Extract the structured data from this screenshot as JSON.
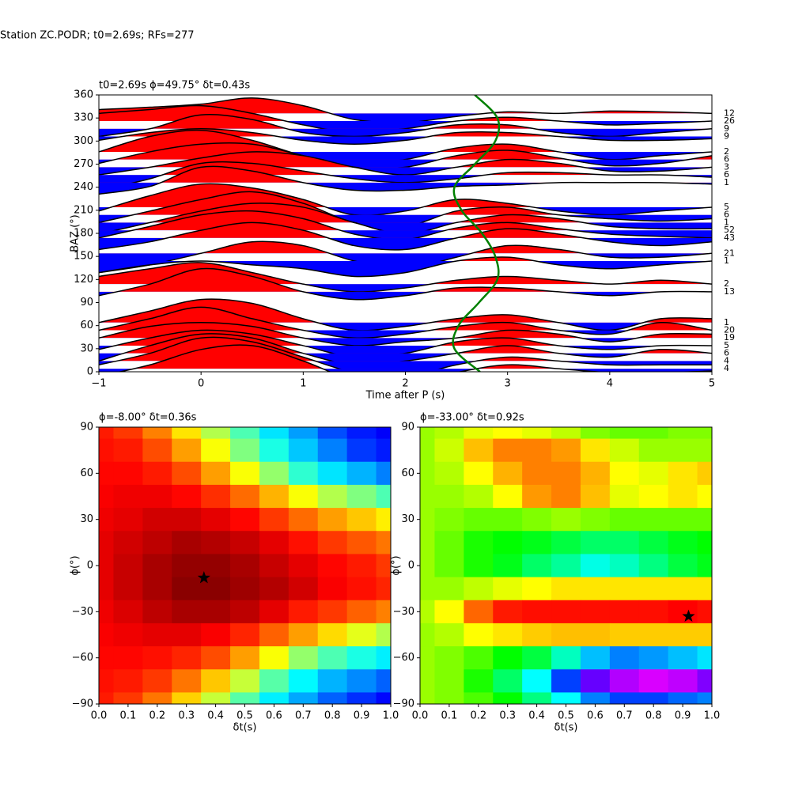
{
  "suptitle": "Station ZC.PODR; t0=2.69s; RFs=277",
  "chart_data": [
    {
      "type": "wiggle",
      "title": "t0=2.69s ϕ=49.75° δt=0.43s",
      "xlabel": "Time after P (s)",
      "ylabel": "BAZ (°)",
      "xlim": [
        -1,
        5
      ],
      "ylim": [
        0,
        360
      ],
      "xticks": [
        {
          "value": -1,
          "label": "−1"
        },
        0,
        1,
        2,
        3,
        4,
        5
      ],
      "yticks": [
        0,
        30,
        60,
        90,
        120,
        150,
        180,
        210,
        240,
        270,
        300,
        330,
        360
      ],
      "positive_color": "#ff0000",
      "negative_color": "#0000ff",
      "times": [
        -1,
        -0.5,
        0,
        0.5,
        1,
        1.5,
        2,
        2.5,
        3,
        3.5,
        4,
        4.5,
        5
      ],
      "traces": [
        {
          "baz": 336,
          "count": 12,
          "values": [
            5,
            8,
            12,
            20,
            10,
            -8,
            -12,
            -4,
            2,
            0,
            3,
            2,
            0
          ]
        },
        {
          "baz": 326,
          "count": 26,
          "values": [
            10,
            15,
            20,
            10,
            -5,
            -15,
            -10,
            0,
            5,
            0,
            -5,
            -3,
            0
          ]
        },
        {
          "baz": 316,
          "count": 9,
          "values": [
            -10,
            0,
            18,
            12,
            -5,
            -10,
            -5,
            5,
            5,
            -5,
            -10,
            -5,
            0
          ]
        },
        {
          "baz": 306,
          "count": 9,
          "values": [
            -5,
            5,
            10,
            5,
            -5,
            -10,
            -5,
            5,
            5,
            0,
            -5,
            -5,
            -3
          ]
        },
        {
          "baz": 286,
          "count": 2,
          "values": [
            0,
            20,
            28,
            15,
            -5,
            -15,
            -10,
            5,
            10,
            0,
            -10,
            -5,
            0
          ]
        },
        {
          "baz": 276,
          "count": 6,
          "values": [
            -5,
            10,
            20,
            20,
            5,
            -10,
            -10,
            5,
            12,
            2,
            -8,
            -5,
            5
          ]
        },
        {
          "baz": 266,
          "count": 3,
          "values": [
            -10,
            0,
            12,
            20,
            15,
            0,
            -10,
            0,
            10,
            5,
            -5,
            -5,
            0
          ]
        },
        {
          "baz": 256,
          "count": 6,
          "values": [
            -20,
            -5,
            15,
            15,
            5,
            -5,
            -10,
            -5,
            3,
            3,
            0,
            0,
            -3
          ]
        },
        {
          "baz": 246,
          "count": 1,
          "values": [
            -15,
            -5,
            20,
            15,
            0,
            -10,
            -10,
            -5,
            -3,
            0,
            0,
            0,
            -2
          ]
        },
        {
          "baz": 214,
          "count": 5,
          "values": [
            -5,
            15,
            30,
            25,
            10,
            -10,
            -5,
            10,
            5,
            -5,
            -10,
            -5,
            0
          ]
        },
        {
          "baz": 204,
          "count": 6,
          "values": [
            -10,
            5,
            20,
            30,
            15,
            -10,
            -15,
            5,
            10,
            0,
            -5,
            -8,
            -5
          ]
        },
        {
          "baz": 194,
          "count": 1,
          "values": [
            -15,
            0,
            15,
            25,
            20,
            0,
            -15,
            0,
            10,
            5,
            -5,
            -8,
            -8
          ]
        },
        {
          "baz": 184,
          "count": 52,
          "values": [
            -10,
            5,
            20,
            25,
            15,
            -5,
            -12,
            3,
            10,
            2,
            -5,
            -8,
            -10
          ]
        },
        {
          "baz": 174,
          "count": 43,
          "values": [
            -15,
            -5,
            10,
            20,
            10,
            -10,
            -15,
            0,
            12,
            5,
            -5,
            -10,
            -5
          ]
        },
        {
          "baz": 154,
          "count": 21,
          "values": [
            -25,
            -15,
            0,
            15,
            10,
            -10,
            -20,
            -5,
            10,
            5,
            -5,
            -5,
            0
          ]
        },
        {
          "baz": 144,
          "count": 1,
          "values": [
            -15,
            -5,
            0,
            -5,
            -10,
            -20,
            -15,
            0,
            5,
            -5,
            -10,
            -5,
            0
          ]
        },
        {
          "baz": 114,
          "count": 2,
          "values": [
            10,
            20,
            28,
            15,
            0,
            -10,
            -5,
            5,
            10,
            5,
            0,
            5,
            0
          ]
        },
        {
          "baz": 104,
          "count": 13,
          "values": [
            -5,
            10,
            30,
            20,
            0,
            -10,
            -5,
            5,
            5,
            0,
            -5,
            0,
            0
          ]
        },
        {
          "baz": 64,
          "count": 1,
          "values": [
            0,
            15,
            30,
            25,
            5,
            -10,
            -5,
            5,
            10,
            0,
            -10,
            5,
            5
          ]
        },
        {
          "baz": 54,
          "count": 20,
          "values": [
            0,
            15,
            30,
            15,
            0,
            -10,
            -5,
            5,
            10,
            0,
            -5,
            10,
            0
          ]
        },
        {
          "baz": 44,
          "count": 19,
          "values": [
            0,
            15,
            20,
            15,
            0,
            -10,
            -5,
            0,
            10,
            5,
            -5,
            5,
            5
          ]
        },
        {
          "baz": 34,
          "count": 5,
          "values": [
            -5,
            10,
            20,
            15,
            0,
            -15,
            -10,
            5,
            10,
            0,
            -5,
            0,
            0
          ]
        },
        {
          "baz": 24,
          "count": 6,
          "values": [
            -10,
            10,
            25,
            20,
            0,
            -15,
            -10,
            0,
            10,
            0,
            -5,
            5,
            0
          ]
        },
        {
          "baz": 14,
          "count": 4,
          "values": [
            -5,
            10,
            30,
            25,
            5,
            -15,
            -20,
            -5,
            5,
            0,
            -5,
            -5,
            -5
          ]
        },
        {
          "baz": 4,
          "count": 4,
          "values": [
            -10,
            5,
            25,
            30,
            10,
            -15,
            -20,
            -5,
            5,
            0,
            -5,
            -5,
            -3
          ]
        }
      ],
      "t0_curve": {
        "color": "#008000",
        "baz": [
          0,
          30,
          60,
          90,
          120,
          150,
          180,
          210,
          240,
          270,
          300,
          330,
          360
        ],
        "time": [
          2.73,
          2.48,
          2.52,
          2.72,
          2.9,
          2.88,
          2.75,
          2.55,
          2.48,
          2.68,
          2.88,
          2.9,
          2.68
        ]
      }
    },
    {
      "type": "heatmap",
      "title": "ϕ=-8.00° δt=0.36s",
      "xlabel": "δt(s)",
      "ylabel": "ϕ(°)",
      "colormap": "jet",
      "xlim": [
        0,
        1
      ],
      "ylim": [
        -90,
        90
      ],
      "xticks": [
        {
          "value": 0,
          "label": "0.0"
        },
        {
          "value": 0.1,
          "label": "0.1"
        },
        {
          "value": 0.2,
          "label": "0.2"
        },
        {
          "value": 0.3,
          "label": "0.3"
        },
        {
          "value": 0.4,
          "label": "0.4"
        },
        {
          "value": 0.5,
          "label": "0.5"
        },
        {
          "value": 0.6,
          "label": "0.6"
        },
        {
          "value": 0.7,
          "label": "0.7"
        },
        {
          "value": 0.8,
          "label": "0.8"
        },
        {
          "value": 0.9,
          "label": "0.9"
        },
        {
          "value": 1,
          "label": "1.0"
        }
      ],
      "yticks": [
        {
          "value": -90,
          "label": "−90"
        },
        {
          "value": -60,
          "label": "−60"
        },
        {
          "value": -30,
          "label": "−30"
        },
        0,
        30,
        60,
        90
      ],
      "x": [
        0,
        0.1,
        0.2,
        0.3,
        0.4,
        0.5,
        0.6,
        0.7,
        0.8,
        0.9,
        1
      ],
      "y": [
        90,
        75,
        60,
        45,
        30,
        15,
        0,
        -15,
        -30,
        -45,
        -60,
        -75,
        -90
      ],
      "z": [
        [
          0.85,
          0.82,
          0.75,
          0.65,
          0.55,
          0.45,
          0.35,
          0.28,
          0.2,
          0.15,
          0.12
        ],
        [
          0.86,
          0.85,
          0.8,
          0.72,
          0.62,
          0.5,
          0.4,
          0.32,
          0.25,
          0.18,
          0.15
        ],
        [
          0.87,
          0.87,
          0.85,
          0.8,
          0.72,
          0.62,
          0.52,
          0.42,
          0.35,
          0.3,
          0.25
        ],
        [
          0.88,
          0.89,
          0.89,
          0.87,
          0.83,
          0.77,
          0.7,
          0.62,
          0.55,
          0.5,
          0.45
        ],
        [
          0.89,
          0.9,
          0.92,
          0.92,
          0.9,
          0.87,
          0.82,
          0.77,
          0.72,
          0.68,
          0.64
        ],
        [
          0.9,
          0.92,
          0.94,
          0.96,
          0.95,
          0.93,
          0.9,
          0.86,
          0.82,
          0.79,
          0.76
        ],
        [
          0.9,
          0.93,
          0.96,
          0.98,
          0.98,
          0.96,
          0.93,
          0.9,
          0.87,
          0.85,
          0.82
        ],
        [
          0.9,
          0.93,
          0.96,
          0.99,
          0.99,
          0.97,
          0.95,
          0.92,
          0.88,
          0.86,
          0.84
        ],
        [
          0.89,
          0.91,
          0.94,
          0.96,
          0.96,
          0.94,
          0.9,
          0.85,
          0.82,
          0.78,
          0.75
        ],
        [
          0.88,
          0.89,
          0.9,
          0.9,
          0.88,
          0.84,
          0.78,
          0.72,
          0.66,
          0.6,
          0.55
        ],
        [
          0.87,
          0.87,
          0.86,
          0.84,
          0.8,
          0.72,
          0.62,
          0.52,
          0.45,
          0.4,
          0.36
        ],
        [
          0.86,
          0.85,
          0.82,
          0.76,
          0.68,
          0.57,
          0.46,
          0.37,
          0.3,
          0.26,
          0.22
        ],
        [
          0.85,
          0.82,
          0.76,
          0.67,
          0.57,
          0.46,
          0.36,
          0.29,
          0.22,
          0.17,
          0.13
        ]
      ],
      "marker": {
        "x": 0.36,
        "y": -8
      }
    },
    {
      "type": "heatmap",
      "title": "ϕ=-33.00° δt=0.92s",
      "xlabel": "δt(s)",
      "ylabel": "ϕ(°)",
      "colormap": "rainbow",
      "xlim": [
        0,
        1
      ],
      "ylim": [
        -90,
        90
      ],
      "xticks": [
        {
          "value": 0,
          "label": "0.0"
        },
        {
          "value": 0.1,
          "label": "0.1"
        },
        {
          "value": 0.2,
          "label": "0.2"
        },
        {
          "value": 0.3,
          "label": "0.3"
        },
        {
          "value": 0.4,
          "label": "0.4"
        },
        {
          "value": 0.5,
          "label": "0.5"
        },
        {
          "value": 0.6,
          "label": "0.6"
        },
        {
          "value": 0.7,
          "label": "0.7"
        },
        {
          "value": 0.8,
          "label": "0.8"
        },
        {
          "value": 0.9,
          "label": "0.9"
        },
        {
          "value": 1,
          "label": "1.0"
        }
      ],
      "yticks": [
        {
          "value": -90,
          "label": "−90"
        },
        {
          "value": -60,
          "label": "−60"
        },
        {
          "value": -30,
          "label": "−30"
        },
        0,
        30,
        60,
        90
      ],
      "x": [
        0,
        0.1,
        0.2,
        0.3,
        0.4,
        0.5,
        0.6,
        0.7,
        0.8,
        0.9,
        1
      ],
      "y": [
        90,
        75,
        60,
        45,
        30,
        15,
        0,
        -15,
        -30,
        -45,
        -60,
        -75,
        -90
      ],
      "z": [
        [
          0.72,
          0.74,
          0.78,
          0.8,
          0.78,
          0.75,
          0.7,
          0.68,
          0.68,
          0.7,
          0.7
        ],
        [
          0.72,
          0.76,
          0.85,
          0.9,
          0.9,
          0.88,
          0.82,
          0.76,
          0.72,
          0.72,
          0.72
        ],
        [
          0.72,
          0.74,
          0.8,
          0.86,
          0.9,
          0.9,
          0.86,
          0.8,
          0.78,
          0.82,
          0.84
        ],
        [
          0.72,
          0.72,
          0.74,
          0.8,
          0.88,
          0.9,
          0.85,
          0.78,
          0.8,
          0.82,
          0.8
        ],
        [
          0.72,
          0.7,
          0.68,
          0.68,
          0.7,
          0.72,
          0.7,
          0.68,
          0.68,
          0.68,
          0.68
        ],
        [
          0.72,
          0.68,
          0.62,
          0.6,
          0.58,
          0.55,
          0.52,
          0.52,
          0.55,
          0.58,
          0.6
        ],
        [
          0.72,
          0.68,
          0.62,
          0.58,
          0.52,
          0.48,
          0.42,
          0.45,
          0.5,
          0.55,
          0.58
        ],
        [
          0.72,
          0.72,
          0.75,
          0.78,
          0.8,
          0.82,
          0.82,
          0.82,
          0.82,
          0.82,
          0.82
        ],
        [
          0.74,
          0.8,
          0.92,
          0.98,
          0.99,
          0.99,
          0.99,
          0.99,
          0.99,
          1.0,
          0.99
        ],
        [
          0.72,
          0.74,
          0.8,
          0.82,
          0.84,
          0.85,
          0.85,
          0.84,
          0.84,
          0.84,
          0.84
        ],
        [
          0.72,
          0.7,
          0.66,
          0.6,
          0.55,
          0.45,
          0.35,
          0.3,
          0.32,
          0.35,
          0.38
        ],
        [
          0.72,
          0.7,
          0.62,
          0.52,
          0.4,
          0.25,
          0.12,
          0.06,
          0.03,
          0.05,
          0.1
        ],
        [
          0.72,
          0.7,
          0.66,
          0.6,
          0.5,
          0.4,
          0.3,
          0.25,
          0.25,
          0.28,
          0.3
        ]
      ],
      "marker": {
        "x": 0.92,
        "y": -33
      }
    }
  ]
}
